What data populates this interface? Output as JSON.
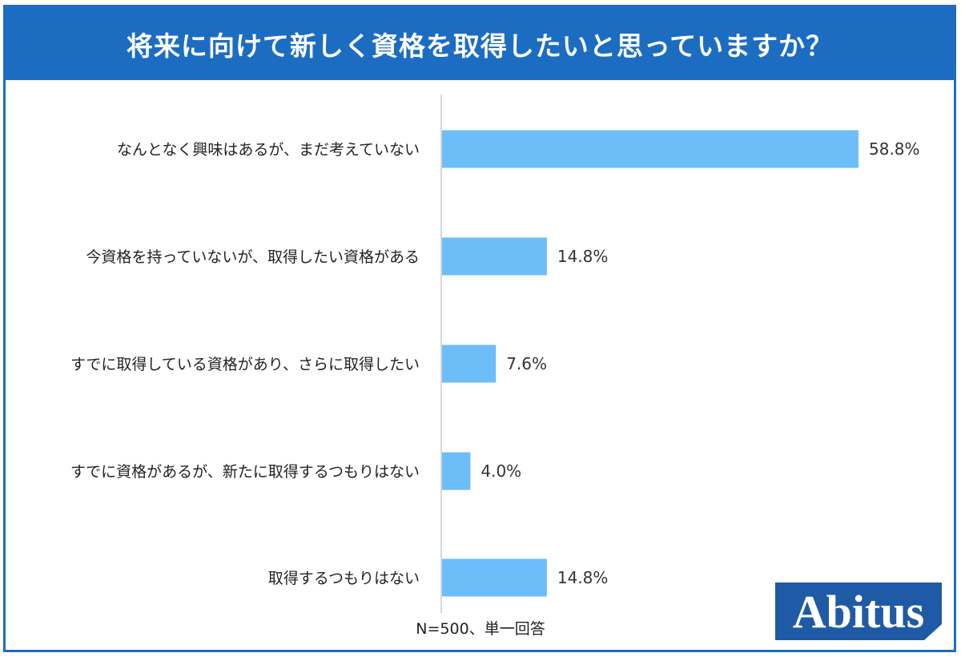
{
  "header": {
    "title": "将来に向けて新しく資格を取得したいと思っていますか？"
  },
  "chart_data": {
    "type": "bar",
    "orientation": "horizontal",
    "title": "将来に向けて新しく資格を取得したいと思っていますか？",
    "categories": [
      "なんとなく興味はあるが、まだ考えていない",
      "今資格を持っていないが、取得したい資格がある",
      "すでに取得している資格があり、さらに取得したい",
      "すでに資格があるが、新たに取得するつもりはない",
      "取得するつもりはない"
    ],
    "values": [
      58.8,
      14.8,
      7.6,
      4.0,
      14.8
    ],
    "value_labels": [
      "58.8%",
      "14.8%",
      "7.6%",
      "4.0%",
      "14.8%"
    ],
    "unit": "%",
    "xlim": [
      0,
      60
    ],
    "grid": false,
    "legend": "none",
    "bar_color": "#6dbdf9",
    "note": "N=500、単一回答"
  },
  "colors": {
    "header_bg": "#1c6dc1",
    "bar": "#6dbdf9",
    "axis": "#c8c8c8",
    "logo_bg": "#1f5aa6"
  },
  "logo": {
    "text": "Abitus"
  }
}
